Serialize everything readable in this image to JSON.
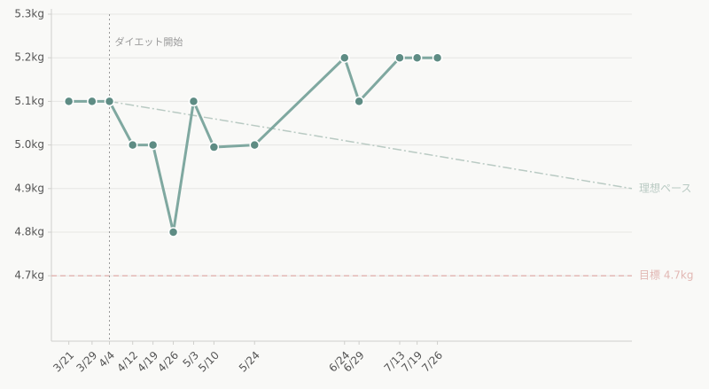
{
  "chart_data": {
    "type": "line",
    "x": [
      "3/21",
      "3/29",
      "4/4",
      "4/12",
      "4/19",
      "4/26",
      "5/3",
      "5/10",
      "5/24",
      "6/24",
      "6/29",
      "7/13",
      "7/19",
      "7/26"
    ],
    "series": [
      {
        "color": "#7fa8a0",
        "marker_color": "#5e8c84",
        "values": [
          5.1,
          5.1,
          5.1,
          5.0,
          5.0,
          4.8,
          5.1,
          4.995,
          5.0,
          5.2,
          5.1,
          5.2,
          5.2,
          5.2
        ]
      }
    ],
    "pace": {
      "name": "理想ペース",
      "x": [
        "4/4",
        "10/1"
      ],
      "values": [
        5.1,
        4.9
      ],
      "color": "#b9cac3"
    },
    "target": {
      "name": "目標 4.7kg",
      "value": 4.7,
      "color": "#e2b8b4"
    },
    "annotation": {
      "x": "4/4",
      "text": "ダイエット開始"
    },
    "xlim": [
      "3/15",
      "10/1"
    ],
    "ylim": [
      4.55,
      5.3
    ],
    "yticks": [
      {
        "value": 4.7,
        "label": "4.7kg"
      },
      {
        "value": 4.8,
        "label": "4.8kg"
      },
      {
        "value": 4.9,
        "label": "4.9kg"
      },
      {
        "value": 5.0,
        "label": "5.0kg"
      },
      {
        "value": 5.1,
        "label": "5.1kg"
      },
      {
        "value": 5.2,
        "label": "5.2kg"
      },
      {
        "value": 5.3,
        "label": "5.3kg"
      }
    ],
    "grid": true
  }
}
